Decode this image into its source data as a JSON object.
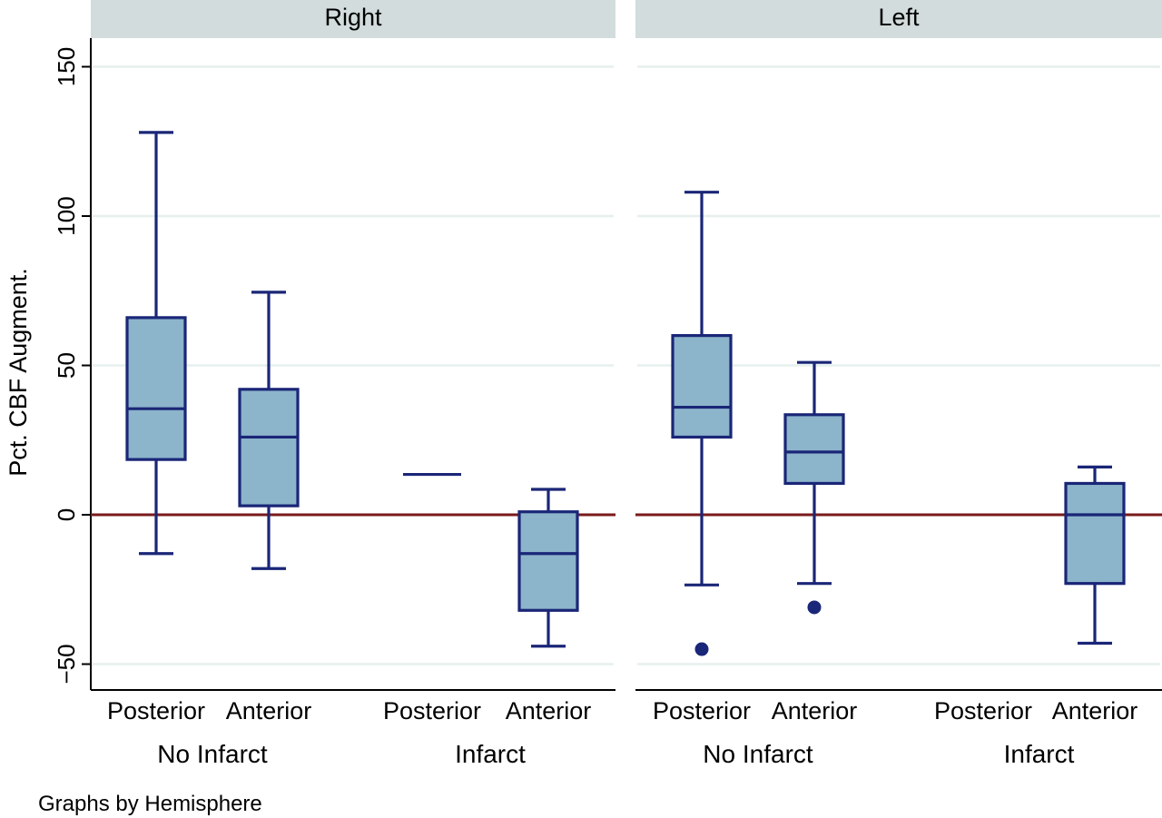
{
  "chart_data": {
    "type": "box",
    "ylabel": "Pct. CBF Augment.",
    "yticks": [
      -50,
      0,
      50,
      100,
      150
    ],
    "ylim": [
      -60,
      160
    ],
    "reference_line": 0,
    "note": "Graphs by Hemisphere",
    "grid": true,
    "panels": [
      {
        "title": "Right",
        "groups": [
          {
            "label": "No Infarct",
            "categories": [
              {
                "label": "Posterior",
                "whisker_low": -13,
                "q1": 18.5,
                "median": 35.5,
                "q3": 66,
                "whisker_high": 128,
                "outliers": []
              },
              {
                "label": "Anterior",
                "whisker_low": -18,
                "q1": 3,
                "median": 26,
                "q3": 42,
                "whisker_high": 74.5,
                "outliers": []
              }
            ]
          },
          {
            "label": "Infarct",
            "categories": [
              {
                "label": "Posterior",
                "whisker_low": 13.5,
                "q1": 13.5,
                "median": 13.5,
                "q3": 13.5,
                "whisker_high": 13.5,
                "outliers": []
              },
              {
                "label": "Anterior",
                "whisker_low": -44,
                "q1": -32,
                "median": -13,
                "q3": 1,
                "whisker_high": 8.5,
                "outliers": []
              }
            ]
          }
        ]
      },
      {
        "title": "Left",
        "groups": [
          {
            "label": "No Infarct",
            "categories": [
              {
                "label": "Posterior",
                "whisker_low": -23.5,
                "q1": 26,
                "median": 36,
                "q3": 60,
                "whisker_high": 108,
                "outliers": [
                  -45
                ]
              },
              {
                "label": "Anterior",
                "whisker_low": -23,
                "q1": 10.5,
                "median": 21,
                "q3": 33.5,
                "whisker_high": 51,
                "outliers": [
                  -31
                ]
              }
            ]
          },
          {
            "label": "Infarct",
            "categories": [
              {
                "label": "Posterior",
                "whisker_low": null,
                "q1": null,
                "median": null,
                "q3": null,
                "whisker_high": null,
                "outliers": []
              },
              {
                "label": "Anterior",
                "whisker_low": -43,
                "q1": -23,
                "median": 0,
                "q3": 10.5,
                "whisker_high": 16,
                "outliers": []
              }
            ]
          }
        ]
      }
    ]
  },
  "colors": {
    "box_fill": "#8cb4cb",
    "box_stroke": "#1a2677",
    "reference_line": "#7a1a1a",
    "grid": "#e6f0ee",
    "panel_header": "#d3dcdc"
  }
}
